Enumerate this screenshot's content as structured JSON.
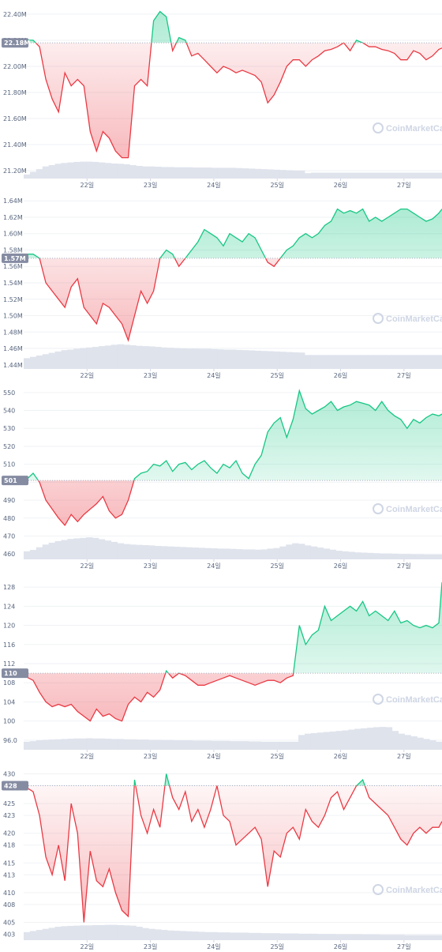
{
  "watermark": "CoinMarketCap",
  "colors": {
    "up": "#16c784",
    "down": "#ea3943",
    "volume": "#dfe3ec",
    "grid": "#eff2f5",
    "badge": "#858ca2"
  },
  "chart_data": [
    {
      "type": "line",
      "baseline": 22.18,
      "current_label": "22.18M",
      "y_ticks": [
        "21.20M",
        "21.40M",
        "21.60M",
        "21.80M",
        "22.00M",
        "22.20M",
        "22.40M"
      ],
      "y_tick_values": [
        21.2,
        21.4,
        21.6,
        21.8,
        22.0,
        22.2,
        22.4
      ],
      "ylim": [
        21.14,
        22.46
      ],
      "x_ticks": [
        "22일",
        "23일",
        "24일",
        "25일",
        "26일",
        "27일"
      ],
      "x_tick_values": [
        1,
        2,
        3,
        4,
        5,
        6
      ],
      "xlim": [
        0.0,
        6.6
      ],
      "x": [
        0.0,
        0.15,
        0.25,
        0.35,
        0.45,
        0.55,
        0.65,
        0.75,
        0.85,
        0.95,
        1.05,
        1.15,
        1.25,
        1.35,
        1.45,
        1.55,
        1.65,
        1.75,
        1.85,
        1.95,
        2.05,
        2.15,
        2.25,
        2.35,
        2.45,
        2.55,
        2.65,
        2.75,
        2.85,
        2.95,
        3.05,
        3.15,
        3.25,
        3.35,
        3.45,
        3.55,
        3.65,
        3.75,
        3.85,
        3.95,
        4.05,
        4.15,
        4.25,
        4.35,
        4.45,
        4.55,
        4.65,
        4.75,
        4.85,
        4.95,
        5.05,
        5.15,
        5.25,
        5.35,
        5.45,
        5.55,
        5.65,
        5.75,
        5.85,
        5.95,
        6.05,
        6.15,
        6.25,
        6.35,
        6.45,
        6.55,
        6.6
      ],
      "values": [
        22.2,
        22.2,
        22.15,
        21.9,
        21.75,
        21.65,
        21.95,
        21.85,
        21.9,
        21.85,
        21.5,
        21.35,
        21.5,
        21.45,
        21.35,
        21.3,
        21.3,
        21.85,
        21.9,
        21.85,
        22.35,
        22.42,
        22.38,
        22.12,
        22.22,
        22.2,
        22.08,
        22.1,
        22.05,
        22.0,
        21.95,
        22.0,
        21.98,
        21.95,
        21.97,
        21.95,
        21.93,
        21.88,
        21.72,
        21.78,
        21.88,
        22.0,
        22.05,
        22.05,
        22.0,
        22.05,
        22.08,
        22.12,
        22.13,
        22.15,
        22.18,
        22.12,
        22.2,
        22.18,
        22.15,
        22.15,
        22.13,
        22.12,
        22.1,
        22.05,
        22.05,
        22.12,
        22.1,
        22.05,
        22.08,
        22.13,
        22.14
      ],
      "volume": [
        0.15,
        0.25,
        0.35,
        0.45,
        0.5,
        0.55,
        0.58,
        0.6,
        0.62,
        0.63,
        0.63,
        0.62,
        0.6,
        0.58,
        0.56,
        0.55,
        0.53,
        0.5,
        0.47,
        0.45,
        0.45,
        0.44,
        0.43,
        0.43,
        0.42,
        0.42,
        0.42,
        0.41,
        0.41,
        0.41,
        0.4,
        0.4,
        0.4,
        0.4,
        0.39,
        0.38,
        0.37,
        0.36,
        0.35,
        0.34,
        0.33,
        0.32,
        0.31,
        0.3,
        0.3,
        0.2,
        0.22,
        0.22,
        0.22,
        0.22,
        0.22,
        0.22,
        0.22,
        0.22,
        0.22,
        0.22,
        0.22,
        0.22,
        0.22,
        0.22,
        0.22,
        0.22,
        0.22,
        0.22,
        0.22,
        0.22,
        0.22
      ]
    },
    {
      "type": "line",
      "baseline": 1.57,
      "current_label": "1.57M",
      "y_ticks": [
        "1.44M",
        "1.46M",
        "1.48M",
        "1.50M",
        "1.52M",
        "1.54M",
        "1.56M",
        "1.58M",
        "1.60M",
        "1.62M",
        "1.64M"
      ],
      "y_tick_values": [
        1.44,
        1.46,
        1.48,
        1.5,
        1.52,
        1.54,
        1.56,
        1.58,
        1.6,
        1.62,
        1.64
      ],
      "ylim": [
        1.435,
        1.645
      ],
      "x_ticks": [
        "22일",
        "23일",
        "24일",
        "25일",
        "26일",
        "27일"
      ],
      "x_tick_values": [
        1,
        2,
        3,
        4,
        5,
        6
      ],
      "xlim": [
        0.0,
        6.6
      ],
      "x": [
        0.0,
        0.15,
        0.25,
        0.35,
        0.45,
        0.55,
        0.65,
        0.75,
        0.85,
        0.95,
        1.05,
        1.15,
        1.25,
        1.35,
        1.45,
        1.55,
        1.65,
        1.75,
        1.85,
        1.95,
        2.05,
        2.15,
        2.25,
        2.35,
        2.45,
        2.55,
        2.65,
        2.75,
        2.85,
        2.95,
        3.05,
        3.15,
        3.25,
        3.35,
        3.45,
        3.55,
        3.65,
        3.75,
        3.85,
        3.95,
        4.05,
        4.15,
        4.25,
        4.35,
        4.45,
        4.55,
        4.65,
        4.75,
        4.85,
        4.95,
        5.05,
        5.15,
        5.25,
        5.35,
        5.45,
        5.55,
        5.65,
        5.75,
        5.85,
        5.95,
        6.05,
        6.15,
        6.25,
        6.35,
        6.45,
        6.55,
        6.6
      ],
      "values": [
        1.575,
        1.575,
        1.57,
        1.54,
        1.53,
        1.52,
        1.51,
        1.535,
        1.545,
        1.51,
        1.5,
        1.49,
        1.515,
        1.51,
        1.5,
        1.49,
        1.47,
        1.5,
        1.53,
        1.515,
        1.53,
        1.57,
        1.58,
        1.575,
        1.56,
        1.57,
        1.58,
        1.59,
        1.605,
        1.6,
        1.595,
        1.585,
        1.6,
        1.595,
        1.59,
        1.6,
        1.595,
        1.58,
        1.565,
        1.56,
        1.57,
        1.58,
        1.585,
        1.595,
        1.6,
        1.595,
        1.6,
        1.61,
        1.615,
        1.63,
        1.625,
        1.628,
        1.625,
        1.63,
        1.615,
        1.62,
        1.615,
        1.62,
        1.625,
        1.63,
        1.63,
        1.625,
        1.62,
        1.615,
        1.618,
        1.625,
        1.63
      ],
      "volume": [
        0.4,
        0.45,
        0.5,
        0.55,
        0.6,
        0.65,
        0.7,
        0.72,
        0.75,
        0.78,
        0.8,
        0.82,
        0.85,
        0.87,
        0.9,
        0.92,
        0.9,
        0.88,
        0.86,
        0.85,
        0.84,
        0.82,
        0.8,
        0.79,
        0.78,
        0.77,
        0.76,
        0.76,
        0.75,
        0.75,
        0.74,
        0.73,
        0.72,
        0.72,
        0.71,
        0.7,
        0.69,
        0.68,
        0.67,
        0.66,
        0.65,
        0.64,
        0.63,
        0.62,
        0.61,
        0.52,
        0.52,
        0.52,
        0.52,
        0.52,
        0.52,
        0.52,
        0.52,
        0.52,
        0.52,
        0.52,
        0.52,
        0.52,
        0.52,
        0.52,
        0.52,
        0.52,
        0.52,
        0.52,
        0.52,
        0.52,
        0.52
      ]
    },
    {
      "type": "line",
      "baseline": 501,
      "current_label": "501",
      "y_ticks": [
        "460",
        "470",
        "480",
        "490",
        "500",
        "510",
        "520",
        "530",
        "540",
        "550"
      ],
      "y_tick_values": [
        460,
        470,
        480,
        490,
        500,
        510,
        520,
        530,
        540,
        550
      ],
      "ylim": [
        457,
        553
      ],
      "x_ticks": [
        "22일",
        "23일",
        "24일",
        "25일",
        "26일",
        "27일"
      ],
      "x_tick_values": [
        1,
        2,
        3,
        4,
        5,
        6
      ],
      "xlim": [
        0.0,
        6.6
      ],
      "x": [
        0.0,
        0.15,
        0.25,
        0.35,
        0.45,
        0.55,
        0.65,
        0.75,
        0.85,
        0.95,
        1.05,
        1.15,
        1.25,
        1.35,
        1.45,
        1.55,
        1.65,
        1.75,
        1.85,
        1.95,
        2.05,
        2.15,
        2.25,
        2.35,
        2.45,
        2.55,
        2.65,
        2.75,
        2.85,
        2.95,
        3.05,
        3.15,
        3.25,
        3.35,
        3.45,
        3.55,
        3.65,
        3.75,
        3.85,
        3.95,
        4.05,
        4.15,
        4.25,
        4.35,
        4.45,
        4.55,
        4.65,
        4.75,
        4.85,
        4.95,
        5.05,
        5.15,
        5.25,
        5.35,
        5.45,
        5.55,
        5.65,
        5.75,
        5.85,
        5.95,
        6.05,
        6.15,
        6.25,
        6.35,
        6.45,
        6.55,
        6.6
      ],
      "values": [
        500,
        505,
        500,
        490,
        485,
        480,
        476,
        482,
        478,
        482,
        485,
        488,
        492,
        484,
        480,
        482,
        490,
        502,
        505,
        506,
        510,
        509,
        512,
        506,
        510,
        511,
        507,
        510,
        512,
        508,
        505,
        510,
        508,
        512,
        505,
        502,
        510,
        515,
        528,
        533,
        536,
        525,
        535,
        551,
        541,
        538,
        540,
        542,
        545,
        540,
        542,
        543,
        545,
        544,
        543,
        540,
        545,
        540,
        537,
        535,
        530,
        535,
        533,
        536,
        538,
        537,
        538
      ],
      "volume": [
        0.3,
        0.35,
        0.45,
        0.55,
        0.62,
        0.68,
        0.72,
        0.76,
        0.78,
        0.8,
        0.82,
        0.8,
        0.75,
        0.7,
        0.65,
        0.6,
        0.57,
        0.55,
        0.54,
        0.53,
        0.52,
        0.5,
        0.49,
        0.48,
        0.47,
        0.46,
        0.45,
        0.44,
        0.43,
        0.42,
        0.41,
        0.4,
        0.4,
        0.39,
        0.38,
        0.37,
        0.37,
        0.36,
        0.37,
        0.4,
        0.42,
        0.48,
        0.55,
        0.6,
        0.58,
        0.52,
        0.48,
        0.44,
        0.4,
        0.36,
        0.32,
        0.3,
        0.28,
        0.26,
        0.25,
        0.24,
        0.23,
        0.22,
        0.22,
        0.21,
        0.2,
        0.2,
        0.19,
        0.19,
        0.18,
        0.18,
        0.18
      ]
    },
    {
      "type": "line",
      "baseline": 110,
      "current_label": "110",
      "y_ticks": [
        "96.0",
        "100",
        "104",
        "108",
        "112",
        "116",
        "120",
        "124",
        "128"
      ],
      "y_tick_values": [
        96,
        100,
        104,
        108,
        112,
        116,
        120,
        124,
        128
      ],
      "ylim": [
        94,
        130
      ],
      "x_ticks": [
        "22일",
        "23일",
        "24일",
        "25일",
        "26일",
        "27일"
      ],
      "x_tick_values": [
        1,
        2,
        3,
        4,
        5,
        6
      ],
      "xlim": [
        0.0,
        6.6
      ],
      "x": [
        0.0,
        0.15,
        0.25,
        0.35,
        0.45,
        0.55,
        0.65,
        0.75,
        0.85,
        0.95,
        1.05,
        1.15,
        1.25,
        1.35,
        1.45,
        1.55,
        1.65,
        1.75,
        1.85,
        1.95,
        2.05,
        2.15,
        2.25,
        2.35,
        2.45,
        2.55,
        2.65,
        2.75,
        2.85,
        2.95,
        3.05,
        3.15,
        3.25,
        3.35,
        3.45,
        3.55,
        3.65,
        3.75,
        3.85,
        3.95,
        4.05,
        4.15,
        4.25,
        4.35,
        4.45,
        4.55,
        4.65,
        4.75,
        4.85,
        4.95,
        5.05,
        5.15,
        5.25,
        5.35,
        5.45,
        5.55,
        5.65,
        5.75,
        5.85,
        5.95,
        6.05,
        6.15,
        6.25,
        6.35,
        6.45,
        6.55,
        6.6
      ],
      "values": [
        109.5,
        108.5,
        106,
        104,
        103,
        103.5,
        103,
        103.5,
        102,
        101,
        100,
        102.5,
        101,
        101.5,
        100.5,
        100,
        103.5,
        105,
        104,
        106,
        105,
        106.5,
        110.5,
        109,
        110,
        109.5,
        108.5,
        107.5,
        107.5,
        108,
        108.5,
        109,
        109.5,
        109,
        108.5,
        108,
        107.5,
        108,
        108.5,
        108.5,
        108,
        109,
        109.5,
        120,
        116,
        118,
        119,
        124,
        121,
        122,
        123,
        124,
        123,
        125,
        122,
        123,
        122,
        121,
        123,
        120.5,
        121,
        120,
        119.5,
        120,
        119.5,
        120.5,
        129
      ],
      "volume": [
        0.3,
        0.32,
        0.35,
        0.37,
        0.38,
        0.39,
        0.4,
        0.41,
        0.42,
        0.42,
        0.43,
        0.42,
        0.42,
        0.41,
        0.4,
        0.4,
        0.39,
        0.39,
        0.38,
        0.38,
        0.37,
        0.37,
        0.36,
        0.36,
        0.35,
        0.35,
        0.35,
        0.34,
        0.34,
        0.34,
        0.33,
        0.33,
        0.33,
        0.32,
        0.32,
        0.32,
        0.31,
        0.31,
        0.3,
        0.3,
        0.3,
        0.3,
        0.3,
        0.3,
        0.55,
        0.6,
        0.62,
        0.64,
        0.66,
        0.68,
        0.7,
        0.72,
        0.75,
        0.78,
        0.8,
        0.82,
        0.84,
        0.85,
        0.84,
        0.7,
        0.6,
        0.55,
        0.5,
        0.45,
        0.4,
        0.35,
        0.3
      ]
    },
    {
      "type": "line",
      "baseline": 428,
      "current_label": "428",
      "y_ticks": [
        "403",
        "405",
        "408",
        "410",
        "413",
        "415",
        "418",
        "420",
        "423",
        "425",
        "428",
        "430"
      ],
      "y_tick_values": [
        403,
        405,
        408,
        410,
        413,
        415,
        418,
        420,
        423,
        425,
        428,
        430
      ],
      "ylim": [
        402,
        431
      ],
      "x_ticks": [
        "22일",
        "23일",
        "24일",
        "25일",
        "26일",
        "27일"
      ],
      "x_tick_values": [
        1,
        2,
        3,
        4,
        5,
        6
      ],
      "xlim": [
        0.0,
        6.6
      ],
      "x": [
        0.0,
        0.15,
        0.25,
        0.35,
        0.45,
        0.55,
        0.65,
        0.75,
        0.85,
        0.95,
        1.05,
        1.15,
        1.25,
        1.35,
        1.45,
        1.55,
        1.65,
        1.75,
        1.85,
        1.95,
        2.05,
        2.15,
        2.25,
        2.35,
        2.45,
        2.55,
        2.65,
        2.75,
        2.85,
        2.95,
        3.05,
        3.15,
        3.25,
        3.35,
        3.45,
        3.55,
        3.65,
        3.75,
        3.85,
        3.95,
        4.05,
        4.15,
        4.25,
        4.35,
        4.45,
        4.55,
        4.65,
        4.75,
        4.85,
        4.95,
        5.05,
        5.15,
        5.25,
        5.35,
        5.45,
        5.55,
        5.65,
        5.75,
        5.85,
        5.95,
        6.05,
        6.15,
        6.25,
        6.35,
        6.45,
        6.55,
        6.6
      ],
      "values": [
        428,
        427,
        423,
        416,
        413,
        418,
        412,
        425,
        420,
        405,
        417,
        412,
        411,
        414,
        410,
        407,
        406,
        429,
        423,
        420,
        424,
        421,
        430,
        426,
        424,
        427,
        422,
        424,
        421,
        424,
        428,
        423,
        422,
        418,
        419,
        420,
        421,
        419,
        411,
        417,
        416,
        420,
        421,
        419,
        424,
        422,
        421,
        423,
        426,
        427,
        424,
        426,
        428,
        429,
        426,
        425,
        424,
        423,
        421,
        419,
        418,
        420,
        421,
        420,
        421,
        421,
        422
      ],
      "volume": [
        0.3,
        0.34,
        0.38,
        0.42,
        0.46,
        0.5,
        0.52,
        0.53,
        0.54,
        0.55,
        0.55,
        0.56,
        0.56,
        0.57,
        0.57,
        0.56,
        0.55,
        0.54,
        0.5,
        0.45,
        0.42,
        0.4,
        0.38,
        0.36,
        0.35,
        0.34,
        0.33,
        0.32,
        0.31,
        0.3,
        0.3,
        0.29,
        0.29,
        0.28,
        0.28,
        0.28,
        0.27,
        0.27,
        0.26,
        0.26,
        0.26,
        0.25,
        0.25,
        0.25,
        0.24,
        0.24,
        0.24,
        0.23,
        0.23,
        0.23,
        0.22,
        0.22,
        0.22,
        0.22,
        0.21,
        0.21,
        0.21,
        0.2,
        0.2,
        0.2,
        0.2,
        0.19,
        0.19,
        0.19,
        0.19,
        0.19,
        0.19
      ]
    }
  ]
}
